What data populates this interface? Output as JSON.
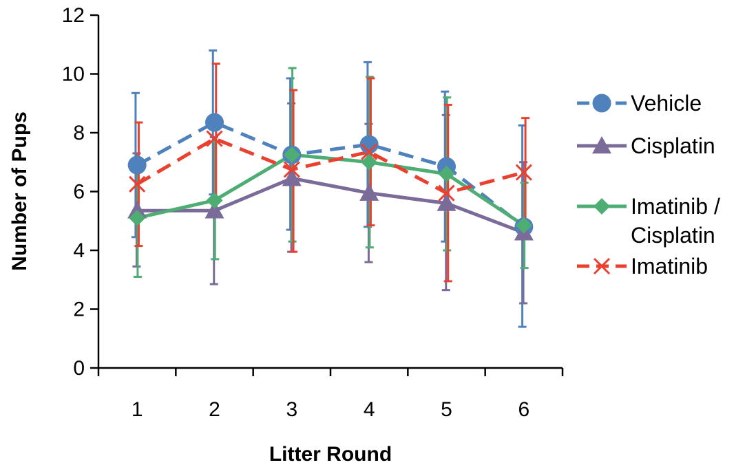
{
  "chart_data": {
    "type": "line",
    "title": "",
    "xlabel": "Litter Round",
    "ylabel": "Number of Pups",
    "x": [
      1,
      2,
      3,
      4,
      5,
      6
    ],
    "categories": [
      "1",
      "2",
      "3",
      "4",
      "5",
      "6"
    ],
    "ylim": [
      0,
      12
    ],
    "yticks": [
      "0",
      "2",
      "4",
      "6",
      "8",
      "10",
      "12"
    ],
    "grid": false,
    "legend_position": "right",
    "series": [
      {
        "name": "Vehicle",
        "values": [
          6.9,
          8.35,
          7.25,
          7.6,
          6.85,
          4.8
        ],
        "err_low": [
          4.45,
          5.9,
          4.7,
          4.8,
          4.3,
          1.4
        ],
        "err_high": [
          9.35,
          10.8,
          9.85,
          10.4,
          9.4,
          8.25
        ],
        "color": "#4f81bd",
        "dash": "dashed",
        "marker": "circle"
      },
      {
        "name": "Cisplatin",
        "values": [
          5.35,
          5.35,
          6.45,
          5.95,
          5.6,
          4.6
        ],
        "err_low": [
          3.45,
          2.85,
          3.95,
          3.6,
          2.65,
          2.2
        ],
        "err_high": [
          7.3,
          7.85,
          9.0,
          8.3,
          8.6,
          7.0
        ],
        "color": "#7b6b99",
        "dash": "solid",
        "marker": "triangle"
      },
      {
        "name": "Imatinib / Cisplatin",
        "legend_lines": [
          "Imatinib /",
          "Cisplatin"
        ],
        "values": [
          5.1,
          5.7,
          7.25,
          7.0,
          6.6,
          4.85
        ],
        "err_low": [
          3.1,
          3.7,
          4.3,
          4.1,
          4.0,
          3.4
        ],
        "err_high": [
          7.1,
          7.7,
          10.2,
          9.9,
          9.2,
          6.3
        ],
        "color": "#4ead72",
        "dash": "solid",
        "marker": "diamond"
      },
      {
        "name": "Imatinib",
        "values": [
          6.25,
          7.8,
          6.75,
          7.35,
          5.95,
          6.65
        ],
        "err_low": [
          4.15,
          5.3,
          3.95,
          4.85,
          2.95,
          4.8
        ],
        "err_high": [
          8.35,
          10.35,
          9.45,
          9.85,
          8.95,
          8.5
        ],
        "color": "#e8412f",
        "dash": "dashed",
        "marker": "x"
      }
    ]
  }
}
